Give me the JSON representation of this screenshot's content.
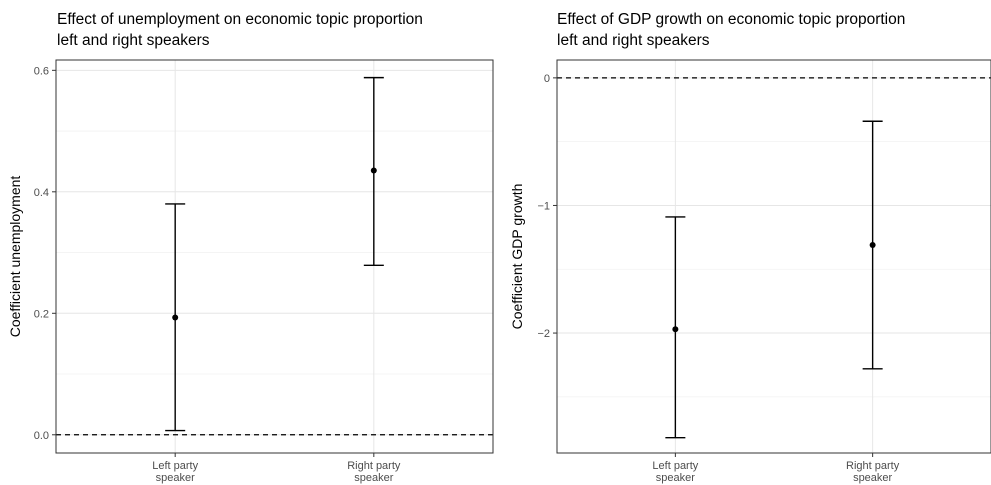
{
  "chart_data": [
    {
      "type": "errorbar",
      "title_line1": "Effect of unemployment on economic topic  proportion",
      "title_line2": "left and right speakers",
      "xlabel": "",
      "ylabel": "Coefficient unemployment",
      "categories": [
        {
          "line1": "Left party",
          "line2": "speaker"
        },
        {
          "line1": "Right party",
          "line2": "speaker"
        }
      ],
      "estimates": [
        0.193,
        0.435
      ],
      "lower": [
        0.007,
        0.279
      ],
      "upper": [
        0.38,
        0.588
      ],
      "reference_line": 0,
      "ylim": [
        -0.03,
        0.617
      ],
      "yticks": [
        0.0,
        0.2,
        0.4,
        0.6
      ],
      "ytick_labels": [
        "0.0",
        "0.2",
        "0.4",
        "0.6"
      ],
      "grid": true
    },
    {
      "type": "errorbar",
      "title_line1": "Effect of GDP growth on economic topic  proportion",
      "title_line2": "left and right speakers",
      "xlabel": "",
      "ylabel": "Coefficient GDP growth",
      "categories": [
        {
          "line1": "Left party",
          "line2": "speaker"
        },
        {
          "line1": "Right party",
          "line2": "speaker"
        }
      ],
      "estimates": [
        -1.97,
        -1.31
      ],
      "lower": [
        -2.82,
        -2.28
      ],
      "upper": [
        -1.09,
        -0.34
      ],
      "reference_line": 0,
      "ylim": [
        -2.94,
        0.14
      ],
      "yticks": [
        -2,
        -1,
        0
      ],
      "ytick_labels": [
        "−2",
        "−1",
        "0"
      ],
      "grid": true
    }
  ]
}
